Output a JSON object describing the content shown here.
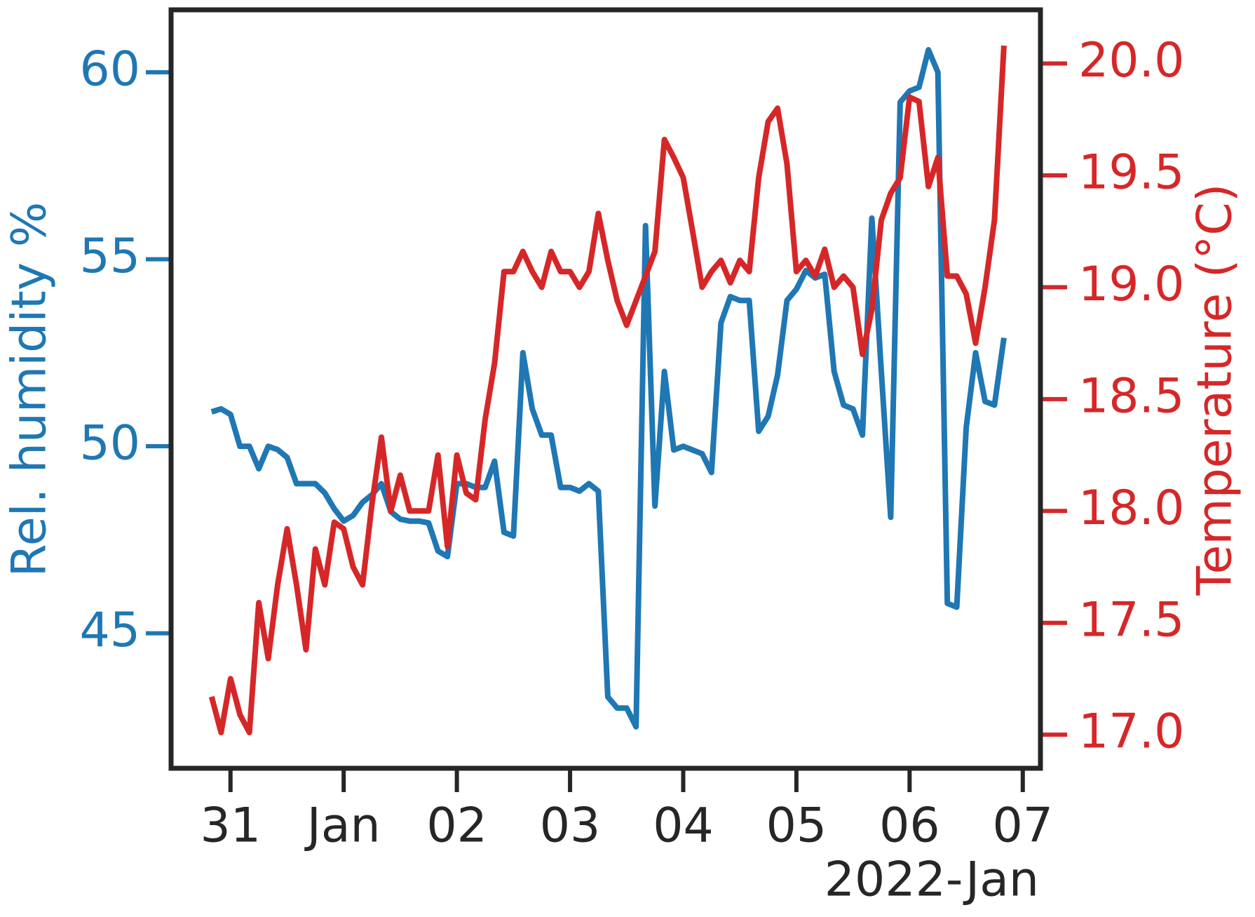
{
  "chart_data": {
    "type": "line",
    "x_label": "2022-Jan",
    "y_label": "Rel. humidity %",
    "y2_label": "Temperature (°C)",
    "x": [
      "2021-12-30T20:00",
      "2021-12-30T22:00",
      "2021-12-31T00:00",
      "2021-12-31T02:00",
      "2021-12-31T04:00",
      "2021-12-31T06:00",
      "2021-12-31T08:00",
      "2021-12-31T10:00",
      "2021-12-31T12:00",
      "2021-12-31T14:00",
      "2021-12-31T16:00",
      "2021-12-31T18:00",
      "2021-12-31T20:00",
      "2021-12-31T22:00",
      "2022-01-01T00:00",
      "2022-01-01T02:00",
      "2022-01-01T04:00",
      "2022-01-01T06:00",
      "2022-01-01T08:00",
      "2022-01-01T10:00",
      "2022-01-01T12:00",
      "2022-01-01T14:00",
      "2022-01-01T16:00",
      "2022-01-01T18:00",
      "2022-01-01T20:00",
      "2022-01-01T22:00",
      "2022-01-02T00:00",
      "2022-01-02T02:00",
      "2022-01-02T04:00",
      "2022-01-02T06:00",
      "2022-01-02T08:00",
      "2022-01-02T10:00",
      "2022-01-02T12:00",
      "2022-01-02T14:00",
      "2022-01-02T16:00",
      "2022-01-02T18:00",
      "2022-01-02T20:00",
      "2022-01-02T22:00",
      "2022-01-03T00:00",
      "2022-01-03T02:00",
      "2022-01-03T04:00",
      "2022-01-03T06:00",
      "2022-01-03T08:00",
      "2022-01-03T10:00",
      "2022-01-03T12:00",
      "2022-01-03T14:00",
      "2022-01-03T16:00",
      "2022-01-03T18:00",
      "2022-01-03T20:00",
      "2022-01-03T22:00",
      "2022-01-04T00:00",
      "2022-01-04T02:00",
      "2022-01-04T04:00",
      "2022-01-04T06:00",
      "2022-01-04T08:00",
      "2022-01-04T10:00",
      "2022-01-04T12:00",
      "2022-01-04T14:00",
      "2022-01-04T16:00",
      "2022-01-04T18:00",
      "2022-01-04T20:00",
      "2022-01-04T22:00",
      "2022-01-05T00:00",
      "2022-01-05T02:00",
      "2022-01-05T04:00",
      "2022-01-05T06:00",
      "2022-01-05T08:00",
      "2022-01-05T10:00",
      "2022-01-05T12:00",
      "2022-01-05T14:00",
      "2022-01-05T16:00",
      "2022-01-05T18:00",
      "2022-01-05T20:00",
      "2022-01-05T22:00",
      "2022-01-06T00:00",
      "2022-01-06T02:00",
      "2022-01-06T04:00",
      "2022-01-06T06:00",
      "2022-01-06T08:00",
      "2022-01-06T10:00",
      "2022-01-06T12:00",
      "2022-01-06T14:00",
      "2022-01-06T16:00",
      "2022-01-06T18:00",
      "2022-01-06T20:00"
    ],
    "series": [
      {
        "name": "Rel. humidity",
        "color": "#1f77b4",
        "axis": "y",
        "values": [
          50.92,
          51.0,
          50.85,
          50.0,
          50.0,
          49.4,
          50.0,
          49.91,
          49.7,
          49.0,
          49.0,
          49.0,
          48.75,
          48.33,
          48.0,
          48.15,
          48.5,
          48.7,
          49.0,
          48.25,
          48.05,
          48.0,
          48.0,
          47.95,
          47.2,
          47.05,
          49.0,
          49.0,
          48.9,
          48.9,
          49.6,
          47.7,
          47.6,
          52.5,
          51.0,
          50.3,
          50.3,
          48.9,
          48.9,
          48.8,
          49.0,
          48.8,
          43.3,
          43.0,
          43.0,
          42.5,
          55.9,
          48.4,
          52.0,
          49.9,
          50.0,
          49.9,
          49.8,
          49.3,
          53.3,
          54.0,
          53.9,
          53.9,
          50.4,
          50.8,
          51.9,
          53.9,
          54.2,
          54.7,
          54.5,
          54.6,
          52.0,
          51.1,
          51.0,
          50.3,
          56.1,
          52.0,
          48.1,
          59.2,
          59.5,
          59.6,
          60.6,
          60.0,
          45.8,
          45.7,
          50.5,
          52.5,
          51.2,
          51.1,
          52.9
        ]
      },
      {
        "name": "Temperature",
        "color": "#d62728",
        "axis": "y2",
        "values": [
          17.17,
          17.01,
          17.25,
          17.09,
          17.01,
          17.59,
          17.34,
          17.67,
          17.92,
          17.67,
          17.38,
          17.83,
          17.67,
          17.95,
          17.92,
          17.75,
          17.67,
          18.03,
          18.33,
          18.0,
          18.16,
          18.0,
          18.0,
          18.0,
          18.25,
          17.84,
          18.25,
          18.08,
          18.05,
          18.41,
          18.66,
          19.07,
          19.07,
          19.16,
          19.07,
          19.0,
          19.16,
          19.07,
          19.07,
          19.0,
          19.07,
          19.33,
          19.12,
          18.94,
          18.83,
          18.94,
          19.05,
          19.16,
          19.66,
          19.58,
          19.49,
          19.25,
          19.0,
          19.07,
          19.12,
          19.02,
          19.12,
          19.07,
          19.49,
          19.74,
          19.8,
          19.55,
          19.07,
          19.12,
          19.05,
          19.17,
          19.0,
          19.05,
          19.0,
          18.7,
          18.9,
          19.3,
          19.42,
          19.49,
          19.85,
          19.83,
          19.45,
          19.58,
          19.05,
          19.05,
          18.97,
          18.75,
          19.0,
          19.3,
          20.08
        ]
      }
    ],
    "xlim": [
      "2021-12-30T11:24",
      "2022-01-07T03:45"
    ],
    "xticks": [
      {
        "value": "2021-12-31T00:00",
        "label": "31"
      },
      {
        "value": "2022-01-01T00:00",
        "label": "Jan"
      },
      {
        "value": "2022-01-02T00:00",
        "label": "02"
      },
      {
        "value": "2022-01-03T00:00",
        "label": "03"
      },
      {
        "value": "2022-01-04T00:00",
        "label": "04"
      },
      {
        "value": "2022-01-05T00:00",
        "label": "05"
      },
      {
        "value": "2022-01-06T00:00",
        "label": "06"
      },
      {
        "value": "2022-01-07T00:00",
        "label": "07"
      }
    ],
    "ylim": [
      41.39,
      61.67
    ],
    "yticks": [
      45,
      50,
      55,
      60
    ],
    "y2lim": [
      16.85,
      20.24
    ],
    "y2ticks": [
      {
        "value": 17,
        "label": "17.0"
      },
      17.5,
      {
        "value": 18,
        "label": "18.0"
      },
      18.5,
      {
        "value": 19,
        "label": "19.0"
      },
      19.5,
      {
        "value": 20,
        "label": "20.0"
      }
    ],
    "grid": false
  }
}
